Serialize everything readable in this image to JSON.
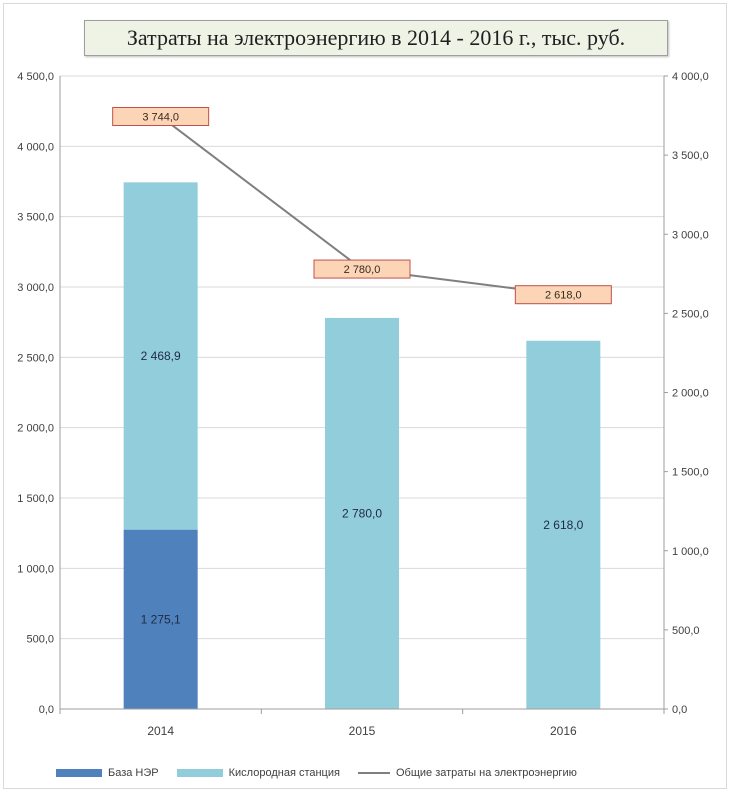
{
  "chart_data": {
    "type": "bar",
    "stacked": true,
    "title": "Затраты на электроэнергию в 2014 - 2016 г., тыс. руб.",
    "categories": [
      "2014",
      "2015",
      "2016"
    ],
    "series": [
      {
        "name": "База НЭР",
        "values": [
          1275.1,
          0,
          0
        ],
        "labels": [
          "1 275,1",
          "",
          ""
        ],
        "color": "#4f81bd"
      },
      {
        "name": "Кислородная станция",
        "values": [
          2468.9,
          2780.0,
          2618.0
        ],
        "labels": [
          "2 468,9",
          "2 780,0",
          "2 618,0"
        ],
        "color": "#92cddc"
      }
    ],
    "line_series": {
      "name": "Общие затраты на электроэнергию",
      "axis": "secondary",
      "values": [
        3744.0,
        2780.0,
        2618.0
      ],
      "labels": [
        "3 744,0",
        "2 780,0",
        "2 618,0"
      ],
      "color": "#7f7f7f",
      "label_fill": "#fbd5b5",
      "label_border": "#c0504d"
    },
    "y_left": {
      "ylim": [
        0,
        4500
      ],
      "ticks": [
        0,
        500,
        1000,
        1500,
        2000,
        2500,
        3000,
        3500,
        4000,
        4500
      ],
      "tick_labels": [
        "0,0",
        "500,0",
        "1 000,0",
        "1 500,0",
        "2 000,0",
        "2 500,0",
        "3 000,0",
        "3 500,0",
        "4 000,0",
        "4 500,0"
      ]
    },
    "y_right": {
      "ylim": [
        0,
        4000
      ],
      "ticks": [
        0,
        500,
        1000,
        1500,
        2000,
        2500,
        3000,
        3500,
        4000
      ],
      "tick_labels": [
        "0,0",
        "500,0",
        "1 000,0",
        "1 500,0",
        "2 000,0",
        "2 500,0",
        "3 000,0",
        "3 500,0",
        "4 000,0"
      ]
    },
    "grid": true,
    "legend_position": "bottom"
  }
}
